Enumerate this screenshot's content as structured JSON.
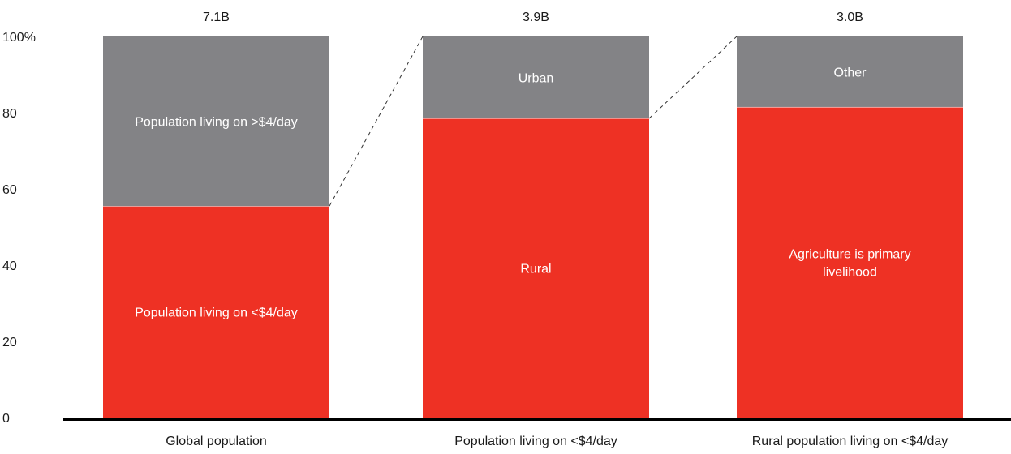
{
  "chart_data": {
    "type": "bar",
    "stacked": true,
    "categories": [
      "Global population",
      "Population living on <$4/day",
      "Rural population living on <$4/day"
    ],
    "totals": [
      "7.1B",
      "3.9B",
      "3.0B"
    ],
    "ylim": [
      0,
      100
    ],
    "yticks": [
      {
        "value": 0,
        "label": "0"
      },
      {
        "value": 20,
        "label": "20"
      },
      {
        "value": 40,
        "label": "40"
      },
      {
        "value": 60,
        "label": "60"
      },
      {
        "value": 80,
        "label": "80"
      },
      {
        "value": 100,
        "label": "100%"
      }
    ],
    "grid": false,
    "bars": [
      {
        "segments": [
          {
            "value": 55.5,
            "color": "#ee3124",
            "label": [
              "Population living on <$4/day"
            ]
          },
          {
            "value": 44.5,
            "color": "#838386",
            "label": [
              "Population living on >$4/day"
            ]
          }
        ]
      },
      {
        "segments": [
          {
            "value": 78.5,
            "color": "#ee3124",
            "label": [
              "Rural"
            ]
          },
          {
            "value": 21.5,
            "color": "#838386",
            "label": [
              "Urban"
            ]
          }
        ]
      },
      {
        "segments": [
          {
            "value": 81.5,
            "color": "#ee3124",
            "label": [
              "Agriculture is primary",
              "livelihood"
            ]
          },
          {
            "value": 18.5,
            "color": "#838386",
            "label": [
              "Other"
            ]
          }
        ]
      }
    ]
  }
}
